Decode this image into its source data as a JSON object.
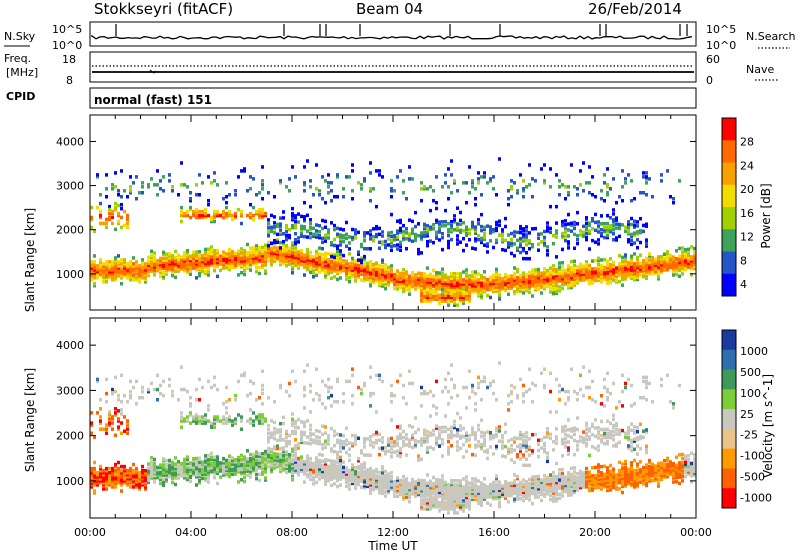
{
  "header": {
    "station": "Stokkseyri (fitACF)",
    "beam": "Beam 04",
    "date": "26/Feb/2014"
  },
  "noise_panel": {
    "left_label": "N.Sky",
    "left_ticks": [
      "10^5",
      "10^0"
    ],
    "right_ticks": [
      "10^5",
      "10^0"
    ],
    "right_label": "N.Search"
  },
  "freq_panel": {
    "left_label_1": "Freq.",
    "left_label_2": "[MHz]",
    "left_ticks": [
      "18",
      "8"
    ],
    "right_ticks": [
      "60",
      "0"
    ],
    "right_label": "Nave"
  },
  "cpid": {
    "label": "CPID",
    "value": "normal (fast) 151"
  },
  "chart_data": [
    {
      "type": "heatmap",
      "name": "power",
      "ylabel": "Slant Range [km]",
      "xlabel": "",
      "ylim": [
        180,
        4600
      ],
      "y_ticks": [
        "1000",
        "2000",
        "3000",
        "4000"
      ],
      "colorbar_label": "Power [dB]",
      "colorbar_ticks": [
        "28",
        "24",
        "20",
        "16",
        "12",
        "8",
        "4"
      ],
      "colors": [
        "#ff0000",
        "#ff6a00",
        "#f7a000",
        "#f4dc00",
        "#9fd000",
        "#3da35a",
        "#2555c8",
        "#0000ff"
      ]
    },
    {
      "type": "heatmap",
      "name": "velocity",
      "ylabel": "Slant Range [km]",
      "xlabel": "Time UT",
      "ylim": [
        180,
        4600
      ],
      "y_ticks": [
        "1000",
        "2000",
        "3000",
        "4000"
      ],
      "x_ticks": [
        "00:00",
        "04:00",
        "08:00",
        "12:00",
        "16:00",
        "20:00",
        "00:00"
      ],
      "colorbar_label": "Velocity [m s^-1]",
      "colorbar_ticks": [
        "1000",
        "500",
        "100",
        "25",
        "-25",
        "-100",
        "-500",
        "-1000"
      ],
      "colors": [
        "#1a3aa0",
        "#2f6fb0",
        "#3f9a5a",
        "#7ccd3a",
        "#c8c8c0",
        "#e8c48a",
        "#ff9a00",
        "#ff6000",
        "#ff0000"
      ]
    }
  ]
}
